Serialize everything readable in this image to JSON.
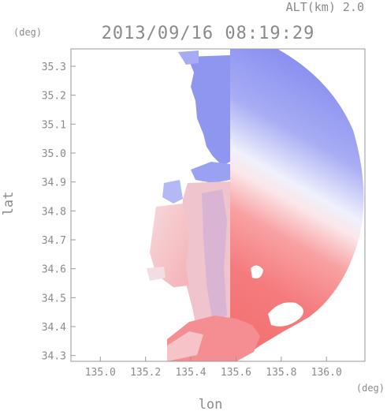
{
  "header": {
    "altitude_label": "ALT(km) 2.0",
    "timestamp": "2013/09/16 08:19:29"
  },
  "axes": {
    "y_unit": "(deg)",
    "x_unit": "(deg)",
    "y_label": "lat",
    "x_label": "lon",
    "x_ticks": [
      "135.0",
      "135.2",
      "135.4",
      "135.6",
      "135.8",
      "136.0"
    ],
    "y_ticks": [
      "35.3",
      "35.2",
      "35.1",
      "35.0",
      "34.9",
      "34.8",
      "34.7",
      "34.6",
      "34.5",
      "34.4",
      "34.3"
    ]
  },
  "map": {
    "lon_range": [
      134.87,
      136.17
    ],
    "lat_range": [
      34.28,
      35.36
    ],
    "radar_center": [
      135.52,
      34.86
    ],
    "colors": {
      "approaching": "#6e78ee",
      "receding": "#f46a6a",
      "near_zero": "#f4eef2",
      "frame": "#9a9a9a"
    }
  }
}
